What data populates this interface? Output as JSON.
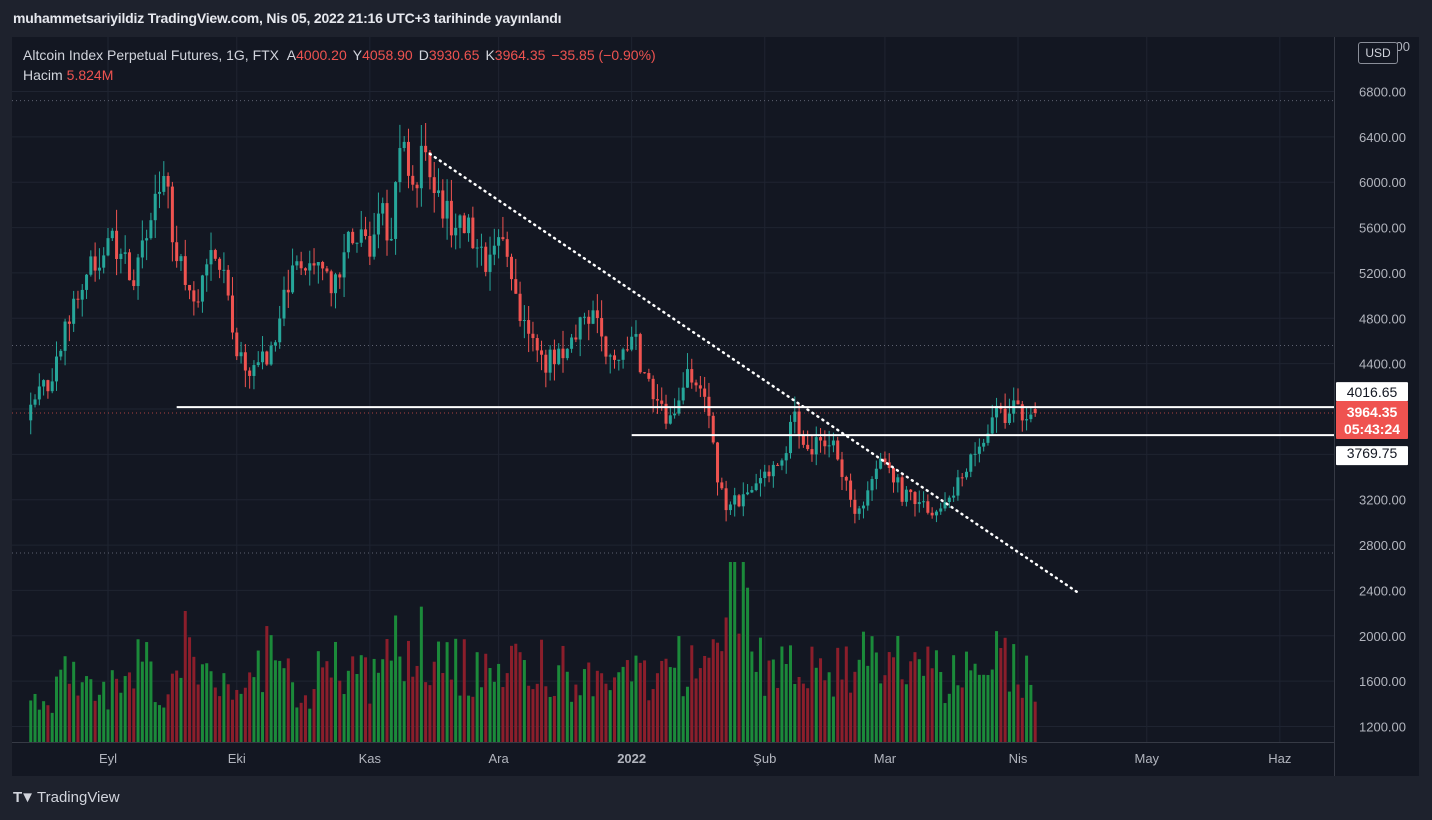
{
  "header": {
    "publisher": "muhammetsariyildiz TradingView.com, Nis 05, 2022 21:16 UTC+3 tarihinde yayınlandı"
  },
  "legend": {
    "symbol": "Altcoin Index Perpetual Futures, 1G, FTX",
    "open_label": "A",
    "open": "4000.20",
    "high_label": "Y",
    "high": "4058.90",
    "low_label": "D",
    "low": "3930.65",
    "close_label": "K",
    "close": "3964.35",
    "change": "−35.85 (−0.90%)",
    "volume_label": "Hacim",
    "volume": "5.824M"
  },
  "currency": "USD",
  "footer": {
    "brand": "TradingView"
  },
  "colors": {
    "up": "#26a69a",
    "down": "#ef5350",
    "vol_up": "#1b8a3a",
    "vol_down": "#8b1e2b",
    "background": "#131722"
  },
  "chart_data": {
    "type": "candlestick",
    "y_axis": {
      "ticks": [
        "1200.00",
        "1600.00",
        "2000.00",
        "2400.00",
        "2800.00",
        "3200.00",
        "3600.00",
        "4000.00",
        "4400.00",
        "4800.00",
        "5200.00",
        "5600.00",
        "6000.00",
        "6400.00",
        "6800.00"
      ],
      "ylim": [
        1100,
        7300
      ],
      "top_tick_partial": "7200.00"
    },
    "x_axis": {
      "labels": [
        {
          "label": "Eyl",
          "date": "2021-09-01"
        },
        {
          "label": "Eki",
          "date": "2021-10-01"
        },
        {
          "label": "Kas",
          "date": "2021-11-01"
        },
        {
          "label": "Ara",
          "date": "2021-12-01"
        },
        {
          "label": "2022",
          "date": "2022-01-01"
        },
        {
          "label": "Şub",
          "date": "2022-02-01"
        },
        {
          "label": "Mar",
          "date": "2022-03-01"
        },
        {
          "label": "Nis",
          "date": "2022-04-01"
        },
        {
          "label": "May",
          "date": "2022-05-01"
        },
        {
          "label": "Haz",
          "date": "2022-06-01"
        }
      ],
      "range": [
        "2021-08-14",
        "2022-06-23"
      ]
    },
    "price_labels": [
      {
        "value": 4016.65,
        "text": "4016.65",
        "style": "white"
      },
      {
        "value": 3964.35,
        "text": "3964.35",
        "countdown": "05:43:24",
        "style": "red"
      },
      {
        "value": 3769.75,
        "text": "3769.75",
        "style": "white"
      }
    ],
    "horizontal_levels": [
      {
        "price": 4016.65,
        "from": "2021-09-17",
        "to": "2022-06-23"
      },
      {
        "price": 3769.75,
        "from": "2022-01-01",
        "to": "2022-06-23"
      }
    ],
    "trendline": {
      "from": {
        "date": "2021-11-15",
        "price": 6250
      },
      "to": {
        "date": "2022-04-15",
        "price": 2380
      }
    },
    "dotted_levels": [
      6720,
      4560,
      2730
    ],
    "current_price_line": 3964.35,
    "anchors": [
      [
        "2021-08-14",
        3900,
        6
      ],
      [
        "2021-08-20",
        4300,
        9
      ],
      [
        "2021-08-26",
        5050,
        7
      ],
      [
        "2021-09-02",
        5500,
        10
      ],
      [
        "2021-09-05",
        5400,
        8
      ],
      [
        "2021-09-08",
        5150,
        11
      ],
      [
        "2021-09-12",
        5650,
        8
      ],
      [
        "2021-09-15",
        6050,
        10
      ],
      [
        "2021-09-18",
        5350,
        14
      ],
      [
        "2021-09-22",
        4950,
        10
      ],
      [
        "2021-09-26",
        5300,
        9
      ],
      [
        "2021-09-29",
        5150,
        8
      ],
      [
        "2021-10-02",
        4450,
        11
      ],
      [
        "2021-10-06",
        4300,
        12
      ],
      [
        "2021-10-10",
        4550,
        9
      ],
      [
        "2021-10-15",
        5200,
        8
      ],
      [
        "2021-10-20",
        5350,
        10
      ],
      [
        "2021-10-24",
        5050,
        11
      ],
      [
        "2021-10-28",
        5500,
        9
      ],
      [
        "2021-11-02",
        5450,
        10
      ],
      [
        "2021-11-05",
        5700,
        12
      ],
      [
        "2021-11-07",
        5500,
        15
      ],
      [
        "2021-11-09",
        6350,
        13
      ],
      [
        "2021-11-12",
        6000,
        14
      ],
      [
        "2021-11-15",
        6280,
        12
      ],
      [
        "2021-11-20",
        5700,
        11
      ],
      [
        "2021-11-25",
        5550,
        10
      ],
      [
        "2021-11-30",
        5250,
        11
      ],
      [
        "2021-12-03",
        5500,
        12
      ],
      [
        "2021-12-05",
        5050,
        13
      ],
      [
        "2021-12-09",
        4650,
        11
      ],
      [
        "2021-12-13",
        4400,
        10
      ],
      [
        "2021-12-18",
        4600,
        9
      ],
      [
        "2021-12-23",
        4850,
        10
      ],
      [
        "2021-12-28",
        4500,
        9
      ],
      [
        "2022-01-03",
        4550,
        10
      ],
      [
        "2022-01-07",
        4050,
        12
      ],
      [
        "2022-01-10",
        3900,
        11
      ],
      [
        "2022-01-15",
        4300,
        10
      ],
      [
        "2022-01-19",
        4150,
        11
      ],
      [
        "2022-01-22",
        3350,
        20
      ],
      [
        "2022-01-24",
        3100,
        24
      ],
      [
        "2022-01-29",
        3300,
        11
      ],
      [
        "2022-02-05",
        3500,
        10
      ],
      [
        "2022-02-09",
        3900,
        12
      ],
      [
        "2022-02-13",
        3650,
        11
      ],
      [
        "2022-02-17",
        3750,
        10
      ],
      [
        "2022-02-20",
        3400,
        11
      ],
      [
        "2022-02-24",
        3050,
        14
      ],
      [
        "2022-02-27",
        3400,
        10
      ],
      [
        "2022-03-02",
        3600,
        11
      ],
      [
        "2022-03-06",
        3250,
        10
      ],
      [
        "2022-03-10",
        3150,
        10
      ],
      [
        "2022-03-14",
        3100,
        9
      ],
      [
        "2022-03-18",
        3300,
        10
      ],
      [
        "2022-03-24",
        3700,
        12
      ],
      [
        "2022-03-28",
        3950,
        11
      ],
      [
        "2022-04-01",
        3980,
        9
      ],
      [
        "2022-04-05",
        3964.35,
        5.824
      ]
    ]
  }
}
